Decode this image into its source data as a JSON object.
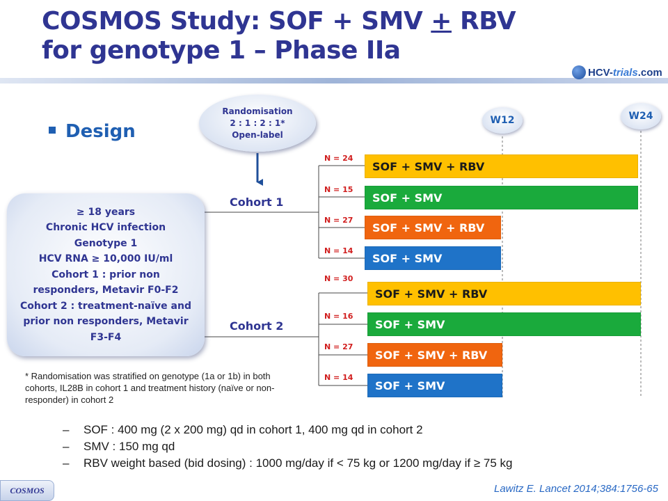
{
  "title": {
    "line1_a": "COSMOS Study: SOF + SMV ",
    "line1_pm": "+",
    "line1_b": " RBV",
    "line2": "for genotype 1 – Phase IIa"
  },
  "logo": {
    "prefix": "HCV-",
    "mid": "trials",
    "suffix": ".com"
  },
  "section": "Design",
  "randomisation": {
    "line1": "Randomisation",
    "line2": "2 : 1 : 2 : 1*",
    "line3": "Open-label"
  },
  "eligibility": [
    "≥ 18 years",
    "Chronic HCV infection",
    "Genotype 1",
    "HCV RNA ≥ 10,000 IU/ml",
    "Cohort 1 : prior non",
    "responders, Metavir F0-F2",
    "Cohort 2 : treatment-naïve and",
    "prior non responders, Metavir",
    "F3-F4"
  ],
  "cohorts": {
    "c1": "Cohort 1",
    "c2": "Cohort 2"
  },
  "weeks": {
    "w12": "W12",
    "w24": "W24"
  },
  "arms": [
    {
      "n": "N = 24",
      "label": "SOF + SMV + RBV",
      "color": "#ffc000",
      "weeks": 24
    },
    {
      "n": "N = 15",
      "label": "SOF + SMV",
      "color": "#1aaa3c",
      "weeks": 24
    },
    {
      "n": "N = 27",
      "label": "SOF + SMV + RBV",
      "color": "#f0650f",
      "weeks": 12
    },
    {
      "n": "N = 14",
      "label": "SOF + SMV",
      "color": "#1f73c8",
      "weeks": 12
    },
    {
      "n": "N = 30",
      "label": "SOF + SMV + RBV",
      "color": "#ffc000",
      "weeks": 24
    },
    {
      "n": "N = 16",
      "label": "SOF + SMV",
      "color": "#1aaa3c",
      "weeks": 24
    },
    {
      "n": "N = 27",
      "label": "SOF + SMV + RBV",
      "color": "#f0650f",
      "weeks": 12
    },
    {
      "n": "N = 14",
      "label": "SOF + SMV",
      "color": "#1f73c8",
      "weeks": 12
    }
  ],
  "footnote": "* Randomisation was stratified on genotype (1a or 1b) in both cohorts, IL28B in cohort 1 and treatment history (naïve or non-responder) in cohort 2",
  "dosing": [
    {
      "dash": "–",
      "text": "SOF : 400 mg (2 x 200 mg) qd in cohort 1, 400 mg qd in cohort 2"
    },
    {
      "dash": "–",
      "text": "SMV : 150 mg qd"
    },
    {
      "dash": "–",
      "text": "RBV weight based (bid dosing) : 1000 mg/day if < 75 kg or 1200 mg/day if ≥ 75 kg"
    }
  ],
  "reference": "Lawitz E. Lancet 2014;384:1756-65",
  "tag": "COSMOS"
}
